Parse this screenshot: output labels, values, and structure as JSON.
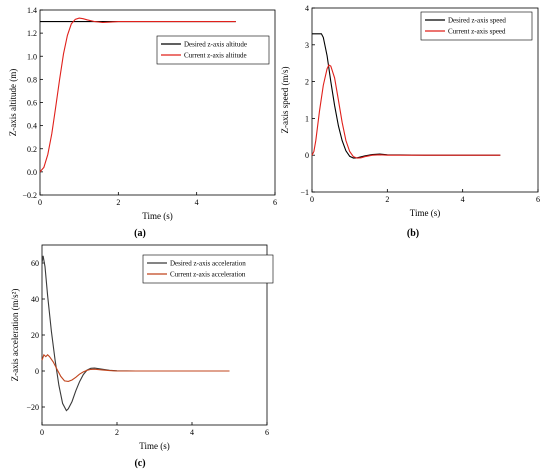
{
  "chart_data": [
    {
      "id": "a",
      "type": "line",
      "panel_label": "(a)",
      "xlabel": "Time (s)",
      "ylabel": "Z-axis altitude (m)",
      "xlim": [
        0,
        6
      ],
      "ylim": [
        -0.2,
        1.4
      ],
      "xticks": [
        0,
        2,
        4,
        6
      ],
      "yticks": [
        -0.2,
        0.0,
        0.2,
        0.4,
        0.6,
        0.8,
        1.0,
        1.2,
        1.4
      ],
      "ytick_labels": [
        "−0.2",
        "0.0",
        "0.2",
        "0.4",
        "0.6",
        "0.8",
        "1.0",
        "1.2",
        "1.4"
      ],
      "legend_position": "center-right",
      "series": [
        {
          "name": "Desired z-axis altitude",
          "color": "#000000",
          "x": [
            0,
            0.5,
            1,
            1.5,
            2,
            2.5,
            3,
            3.5,
            4,
            4.5,
            5
          ],
          "y": [
            1.3,
            1.3,
            1.3,
            1.3,
            1.3,
            1.3,
            1.3,
            1.3,
            1.3,
            1.3,
            1.3
          ]
        },
        {
          "name": "Current z-axis altitude",
          "color": "#e0201b",
          "x": [
            0,
            0.1,
            0.2,
            0.3,
            0.4,
            0.5,
            0.6,
            0.7,
            0.8,
            0.9,
            1.0,
            1.1,
            1.2,
            1.4,
            1.6,
            1.8,
            2.0,
            2.5,
            3,
            4,
            5
          ],
          "y": [
            0.0,
            0.04,
            0.15,
            0.33,
            0.56,
            0.8,
            1.02,
            1.18,
            1.28,
            1.32,
            1.33,
            1.325,
            1.315,
            1.3,
            1.292,
            1.295,
            1.3,
            1.3,
            1.3,
            1.3,
            1.3
          ]
        }
      ]
    },
    {
      "id": "b",
      "type": "line",
      "panel_label": "(b)",
      "xlabel": "Time (s)",
      "ylabel": "Z-axis speed (m/s)",
      "xlim": [
        0,
        6
      ],
      "ylim": [
        -1,
        4
      ],
      "xticks": [
        0,
        2,
        4,
        6
      ],
      "yticks": [
        -1,
        0,
        1,
        2,
        3,
        4
      ],
      "ytick_labels": [
        "−1",
        "0",
        "1",
        "2",
        "3",
        "4"
      ],
      "legend_position": "top-right",
      "series": [
        {
          "name": "Desired z-axis speed",
          "color": "#000000",
          "x": [
            0,
            0.1,
            0.25,
            0.3,
            0.4,
            0.5,
            0.6,
            0.7,
            0.8,
            0.9,
            1.0,
            1.1,
            1.2,
            1.4,
            1.6,
            1.8,
            2.0,
            3,
            4,
            5
          ],
          "y": [
            3.3,
            3.3,
            3.3,
            3.2,
            2.7,
            2.0,
            1.35,
            0.8,
            0.4,
            0.12,
            -0.03,
            -0.08,
            -0.07,
            -0.02,
            0.02,
            0.03,
            0.01,
            0,
            0,
            0
          ]
        },
        {
          "name": "Current z-axis speed",
          "color": "#e0201b",
          "x": [
            0,
            0.05,
            0.1,
            0.2,
            0.3,
            0.4,
            0.45,
            0.5,
            0.6,
            0.7,
            0.8,
            0.9,
            1.0,
            1.1,
            1.2,
            1.3,
            1.4,
            1.6,
            1.8,
            2.0,
            3,
            4,
            5
          ],
          "y": [
            0.0,
            0.1,
            0.4,
            1.2,
            1.9,
            2.35,
            2.45,
            2.42,
            2.1,
            1.5,
            0.9,
            0.4,
            0.1,
            -0.04,
            -0.08,
            -0.07,
            -0.04,
            0.0,
            0.01,
            0.0,
            0,
            0,
            0
          ]
        }
      ]
    },
    {
      "id": "c",
      "type": "line",
      "panel_label": "(c)",
      "xlabel": "Time (s)",
      "ylabel": "Z-axis acceleration (m/s²)",
      "xlim": [
        0,
        6
      ],
      "ylim": [
        -30,
        70
      ],
      "xticks": [
        0,
        2,
        4,
        6
      ],
      "yticks": [
        -20,
        0,
        20,
        40,
        60
      ],
      "ytick_labels": [
        "−20",
        "0",
        "20",
        "40",
        "60"
      ],
      "legend_position": "top-right",
      "series": [
        {
          "name": "Desired z-axis acceleration",
          "color": "#3a3a3a",
          "x": [
            0,
            0.03,
            0.08,
            0.15,
            0.25,
            0.35,
            0.45,
            0.55,
            0.65,
            0.7,
            0.8,
            0.9,
            1.0,
            1.1,
            1.2,
            1.3,
            1.4,
            1.6,
            1.8,
            2.0,
            2.5,
            3,
            4,
            5
          ],
          "y": [
            60,
            64,
            58,
            42,
            22,
            6,
            -8,
            -18,
            -22,
            -21,
            -17,
            -11,
            -6,
            -2,
            0.5,
            1.5,
            1.6,
            1.0,
            0.4,
            0.1,
            0,
            0,
            0,
            0
          ]
        },
        {
          "name": "Current z-axis acceleration",
          "color": "#c0441c",
          "x": [
            0,
            0.05,
            0.1,
            0.15,
            0.2,
            0.3,
            0.4,
            0.5,
            0.6,
            0.7,
            0.8,
            0.9,
            1.0,
            1.1,
            1.2,
            1.3,
            1.4,
            1.6,
            1.8,
            2.0,
            2.5,
            3,
            4,
            5
          ],
          "y": [
            6,
            9,
            8,
            9,
            8,
            5,
            1,
            -3,
            -5.5,
            -5.8,
            -5,
            -3.5,
            -1.8,
            -0.5,
            0.4,
            0.9,
            1.0,
            0.6,
            0.2,
            0.0,
            0,
            0,
            0,
            0
          ]
        }
      ]
    }
  ]
}
